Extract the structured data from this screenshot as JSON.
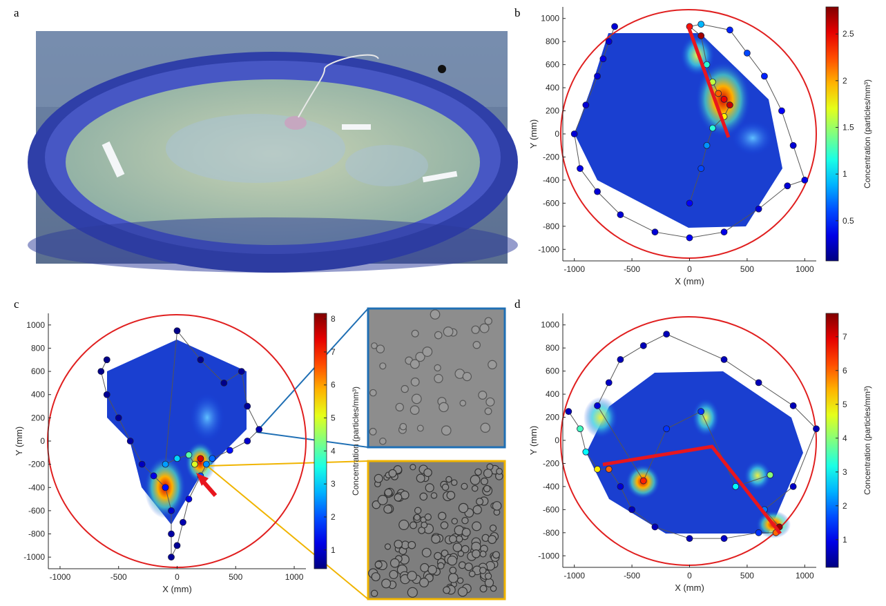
{
  "photo": {
    "label": "a"
  },
  "chart_data": [
    {
      "type": "scatter",
      "panel": "b",
      "xlabel": "X (mm)",
      "ylabel": "Y (mm)",
      "xlim": [
        -1100,
        1100
      ],
      "ylim": [
        -1100,
        1100
      ],
      "xticks": [
        -1000,
        -500,
        0,
        500,
        1000
      ],
      "yticks": [
        -1000,
        -800,
        -600,
        -400,
        -200,
        0,
        200,
        400,
        600,
        800,
        1000
      ],
      "colormap": "jet",
      "colorbar": {
        "label": "Concentration (particles/mm³)",
        "lim": [
          0.07,
          2.79
        ],
        "ticks": [
          0.5,
          1,
          1.5,
          2,
          2.5
        ]
      },
      "x": [
        -650,
        -700,
        -750,
        -800,
        -900,
        -1000,
        -950,
        -800,
        -600,
        -300,
        0,
        300,
        600,
        850,
        1000,
        900,
        800,
        650,
        500,
        350,
        100,
        0,
        100,
        150,
        200,
        250,
        300,
        350,
        300,
        200,
        150,
        100,
        0
      ],
      "values": [
        930,
        800,
        650,
        500,
        250,
        0,
        -300,
        -500,
        -700,
        -850,
        -900,
        -850,
        -650,
        -450,
        -400,
        -100,
        200,
        500,
        700,
        900,
        950,
        930,
        850,
        600,
        450,
        350,
        300,
        250,
        150,
        50,
        -100,
        -300,
        -600
      ],
      "concentration": [
        0.3,
        0.3,
        0.35,
        0.3,
        0.3,
        0.3,
        0.35,
        0.3,
        0.3,
        0.3,
        0.4,
        0.35,
        0.3,
        0.3,
        0.35,
        0.3,
        0.4,
        0.5,
        0.6,
        0.5,
        0.9,
        2.4,
        2.7,
        1.2,
        1.6,
        2.2,
        2.5,
        2.6,
        1.8,
        1.2,
        0.8,
        0.6,
        0.4
      ]
    },
    {
      "type": "scatter",
      "panel": "c",
      "xlabel": "X (mm)",
      "ylabel": "Y (mm)",
      "xlim": [
        -1100,
        1100
      ],
      "ylim": [
        -1100,
        1100
      ],
      "xticks": [
        -1000,
        -500,
        0,
        500,
        1000
      ],
      "yticks": [
        -1000,
        -800,
        -600,
        -400,
        -200,
        0,
        200,
        400,
        600,
        800,
        1000
      ],
      "colormap": "jet",
      "colorbar": {
        "label": "Concentration (particles/mm³)",
        "lim": [
          0.43,
          8.17
        ],
        "ticks": [
          1,
          2,
          3,
          4,
          5,
          6,
          7,
          8
        ]
      },
      "x": [
        -600,
        -650,
        -600,
        -500,
        -400,
        -300,
        -200,
        -100,
        -50,
        -50,
        -50,
        0,
        50,
        100,
        200,
        250,
        300,
        450,
        600,
        700,
        600,
        550,
        400,
        200,
        0,
        -100,
        0,
        100,
        150,
        200
      ],
      "values": [
        700,
        600,
        400,
        200,
        0,
        -200,
        -300,
        -400,
        -600,
        -800,
        -1000,
        -900,
        -700,
        -500,
        -300,
        -200,
        -150,
        -80,
        0,
        100,
        300,
        600,
        500,
        700,
        950,
        -200,
        -150,
        -120,
        -200,
        -150
      ],
      "concentration": [
        0.5,
        0.5,
        0.6,
        0.6,
        0.7,
        0.9,
        1.2,
        1.5,
        1.0,
        0.7,
        0.6,
        0.6,
        0.8,
        1.2,
        2.0,
        2.5,
        2.2,
        1.5,
        1.0,
        0.8,
        0.6,
        0.6,
        0.5,
        0.5,
        0.5,
        2.6,
        3.0,
        4.0,
        5.0,
        7.5
      ]
    },
    {
      "type": "scatter",
      "panel": "d",
      "xlabel": "X (mm)",
      "ylabel": "Y (mm)",
      "xlim": [
        -1100,
        1100
      ],
      "ylim": [
        -1100,
        1100
      ],
      "xticks": [
        -1000,
        -500,
        0,
        500,
        1000
      ],
      "yticks": [
        -1000,
        -800,
        -600,
        -400,
        -200,
        0,
        200,
        400,
        600,
        800,
        1000
      ],
      "colormap": "jet",
      "colorbar": {
        "label": "Concentration (particles/mm³)",
        "lim": [
          0.18,
          7.69
        ],
        "ticks": [
          1,
          2,
          3,
          4,
          5,
          6,
          7
        ]
      },
      "x": [
        -1050,
        -950,
        -900,
        -800,
        -700,
        -600,
        -500,
        -300,
        0,
        300,
        600,
        750,
        780,
        650,
        900,
        1100,
        900,
        600,
        300,
        -200,
        -400,
        -600,
        -700,
        -800,
        -400,
        -200,
        100,
        400,
        700
      ],
      "values": [
        250,
        100,
        -100,
        -250,
        -250,
        -400,
        -600,
        -750,
        -850,
        -850,
        -800,
        -800,
        -750,
        -600,
        -400,
        100,
        300,
        500,
        700,
        920,
        820,
        700,
        500,
        300,
        -350,
        100,
        250,
        -400,
        -300
      ],
      "concentration": [
        0.6,
        3.5,
        3.0,
        5.0,
        6.0,
        0.8,
        0.6,
        0.6,
        0.6,
        0.7,
        1.5,
        6.0,
        7.5,
        2.0,
        0.7,
        0.6,
        0.6,
        0.6,
        0.6,
        0.6,
        0.6,
        0.6,
        0.7,
        0.8,
        6.5,
        1.5,
        1.5,
        3.0,
        4.0
      ]
    }
  ]
}
